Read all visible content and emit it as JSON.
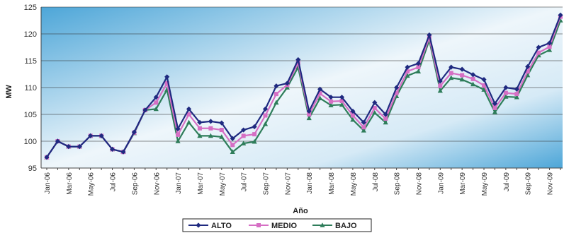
{
  "chart_data": {
    "type": "line",
    "xlabel": "Año",
    "ylabel": "MW",
    "ylim": [
      95,
      125
    ],
    "yticks": [
      95,
      100,
      105,
      110,
      115,
      120,
      125
    ],
    "grid": true,
    "legend": "bottom",
    "x": [
      "Jan-06",
      "Feb-06",
      "Mar-06",
      "Apr-06",
      "May-06",
      "Jun-06",
      "Jul-06",
      "Aug-06",
      "Sep-06",
      "Oct-06",
      "Nov-06",
      "Dec-06",
      "Jan-07",
      "Feb-07",
      "Mar-07",
      "Apr-07",
      "May-07",
      "Jun-07",
      "Jul-07",
      "Aug-07",
      "Sep-07",
      "Oct-07",
      "Nov-07",
      "Dec-07",
      "Jan-08",
      "Feb-08",
      "Mar-08",
      "Apr-08",
      "May-08",
      "Jun-08",
      "Jul-08",
      "Aug-08",
      "Sep-08",
      "Oct-08",
      "Nov-08",
      "Dec-08",
      "Jan-09",
      "Feb-09",
      "Mar-09",
      "Apr-09",
      "May-09",
      "Jun-09",
      "Jul-09",
      "Aug-09",
      "Sep-09",
      "Oct-09",
      "Nov-09",
      "Dec-09"
    ],
    "xticklabels": [
      "Jan-06",
      "Mar-06",
      "May-06",
      "Jul-06",
      "Sep-06",
      "Nov-06",
      "Jan-07",
      "Mar-07",
      "May-07",
      "Jul-07",
      "Sep-07",
      "Nov-07",
      "Jan-08",
      "Mar-08",
      "May-08",
      "Jul-08",
      "Sep-08",
      "Nov-08",
      "Jan-09",
      "Mar-09",
      "May-09",
      "Jul-09",
      "Sep-09",
      "Nov-09"
    ],
    "series": [
      {
        "name": "ALTO",
        "color": "#1f2a80",
        "marker": "diamond",
        "values": [
          97.0,
          100.0,
          99.0,
          99.0,
          101.0,
          101.0,
          98.5,
          98.0,
          101.7,
          105.8,
          108.2,
          112.0,
          102.3,
          106.0,
          103.5,
          103.7,
          103.4,
          100.5,
          102.1,
          102.7,
          106.0,
          110.3,
          110.8,
          115.2,
          105.6,
          109.7,
          108.2,
          108.2,
          105.6,
          103.5,
          107.2,
          105.0,
          110.0,
          113.8,
          114.5,
          119.8,
          111.2,
          113.8,
          113.4,
          112.4,
          111.5,
          107.0,
          110.0,
          109.7,
          113.9,
          117.5,
          118.3,
          123.5
        ]
      },
      {
        "name": "MEDIO",
        "color": "#d66fc4",
        "marker": "square",
        "values": [
          97.0,
          100.0,
          99.0,
          99.0,
          101.0,
          101.0,
          98.5,
          98.0,
          101.6,
          105.8,
          107.2,
          110.8,
          101.2,
          105.0,
          102.4,
          102.4,
          102.1,
          99.3,
          101.0,
          101.3,
          104.8,
          108.8,
          110.5,
          114.6,
          105.0,
          108.9,
          107.4,
          107.5,
          104.8,
          102.6,
          106.2,
          104.2,
          109.0,
          113.0,
          113.8,
          119.3,
          110.3,
          112.7,
          112.3,
          111.6,
          110.4,
          106.2,
          109.0,
          108.8,
          113.0,
          116.5,
          117.6,
          123.2
        ]
      },
      {
        "name": "BAJO",
        "color": "#2e7d5a",
        "marker": "triangle",
        "values": [
          97.0,
          100.0,
          99.0,
          99.0,
          101.0,
          101.0,
          98.5,
          98.0,
          101.5,
          105.8,
          106.0,
          109.6,
          100.0,
          103.5,
          101.0,
          101.0,
          100.8,
          98.0,
          99.6,
          99.9,
          103.2,
          107.2,
          110.0,
          113.8,
          104.3,
          108.0,
          106.7,
          106.8,
          104.0,
          102.0,
          105.3,
          103.5,
          108.4,
          112.2,
          113.0,
          118.8,
          109.4,
          111.8,
          111.5,
          110.6,
          109.6,
          105.4,
          108.3,
          108.2,
          112.3,
          116.0,
          117.0,
          122.5
        ]
      }
    ]
  }
}
